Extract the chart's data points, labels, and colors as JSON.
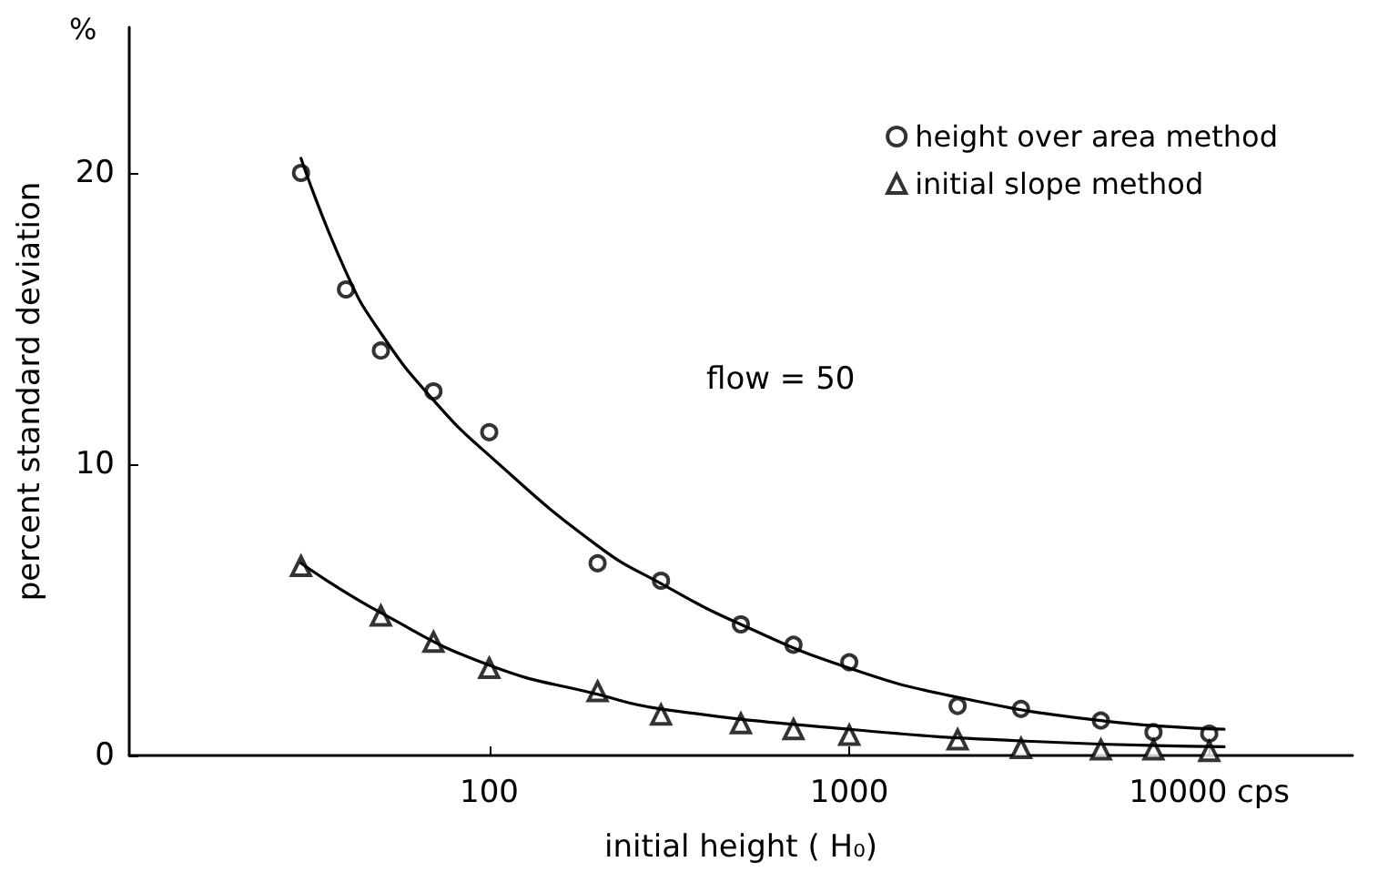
{
  "chart_data": {
    "type": "scatter",
    "xlabel": "initial height ( H₀)",
    "ylabel": "percent standard deviation",
    "annotations": [
      "%",
      "flow = 50"
    ],
    "log": "x",
    "xlim": [
      10,
      25000
    ],
    "xticks": [
      100,
      1000,
      {
        "value": 10000,
        "label": "10000 cps"
      }
    ],
    "ylim": [
      0,
      25
    ],
    "yticks": [
      0,
      10,
      20
    ],
    "grid": false,
    "legend": "top right",
    "series": [
      {
        "name": "height over area method",
        "color": "#000000",
        "marker": "circle",
        "x": [
          30,
          40,
          50,
          70,
          100,
          200,
          300,
          500,
          700,
          1000,
          2000,
          3000,
          5000,
          7000,
          10000
        ],
        "values": [
          20.0,
          16.0,
          13.9,
          12.5,
          11.1,
          6.6,
          6.0,
          4.5,
          3.8,
          3.2,
          1.7,
          1.6,
          1.2,
          0.8,
          0.75
        ]
      },
      {
        "name": "initial slope method",
        "color": "#000000",
        "marker": "triangle",
        "x": [
          30,
          50,
          70,
          100,
          200,
          300,
          500,
          700,
          1000,
          2000,
          3000,
          5000,
          7000,
          10000
        ],
        "values": [
          6.5,
          4.8,
          3.9,
          3.0,
          2.2,
          1.4,
          1.1,
          0.9,
          0.7,
          0.55,
          0.25,
          0.2,
          0.2,
          0.15
        ]
      },
      {
        "type": "line",
        "color": "#000000",
        "marker": "none",
        "x": [
          30,
          40,
          50,
          70,
          100,
          200,
          300,
          500,
          1000,
          2000,
          5000,
          11000
        ],
        "values": [
          20.5,
          16.6,
          14.5,
          12.2,
          10.3,
          7.2,
          5.9,
          4.5,
          3.0,
          2.0,
          1.2,
          0.9
        ]
      },
      {
        "type": "line",
        "color": "#000000",
        "marker": "none",
        "x": [
          30,
          50,
          100,
          200,
          300,
          1000,
          3000,
          11000
        ],
        "values": [
          6.6,
          4.9,
          3.1,
          2.1,
          1.6,
          0.9,
          0.5,
          0.3
        ]
      }
    ]
  }
}
